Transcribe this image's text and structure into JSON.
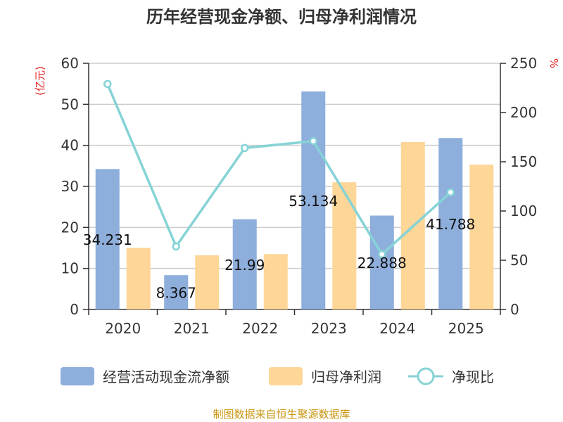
{
  "chart_data": {
    "type": "bar",
    "title": "历年经营现金净额、归母净利润情况",
    "categories": [
      "2020",
      "2021",
      "2022",
      "2023",
      "2024",
      "2025"
    ],
    "series": [
      {
        "name": "经营活动现金流净额",
        "type": "bar",
        "axis": "left",
        "values": [
          34.231,
          8.367,
          21.99,
          53.134,
          22.888,
          41.788
        ],
        "data_labels": [
          "34.231",
          "8.367",
          "21.99",
          "53.134",
          "22.888",
          "41.788"
        ]
      },
      {
        "name": "归母净利润",
        "type": "bar",
        "axis": "left",
        "values": [
          15.0,
          13.2,
          13.5,
          31.0,
          40.8,
          35.3
        ]
      },
      {
        "name": "净现比",
        "type": "line",
        "axis": "right",
        "values": [
          229,
          64,
          164,
          171,
          56,
          119
        ]
      }
    ],
    "y_left": {
      "label": "(亿元)",
      "range": [
        0,
        60
      ],
      "ticks": [
        0,
        10,
        20,
        30,
        40,
        50,
        60
      ]
    },
    "y_right": {
      "label": "%",
      "range": [
        0,
        250
      ],
      "ticks": [
        0,
        50,
        100,
        150,
        200,
        250
      ]
    },
    "legend_position": "bottom",
    "grid": true,
    "colors": {
      "cash": "#8eaedc",
      "profit": "#fdd698",
      "ratio": "#86d3d6"
    }
  },
  "source": "制图数据来自恒生聚源数据库"
}
